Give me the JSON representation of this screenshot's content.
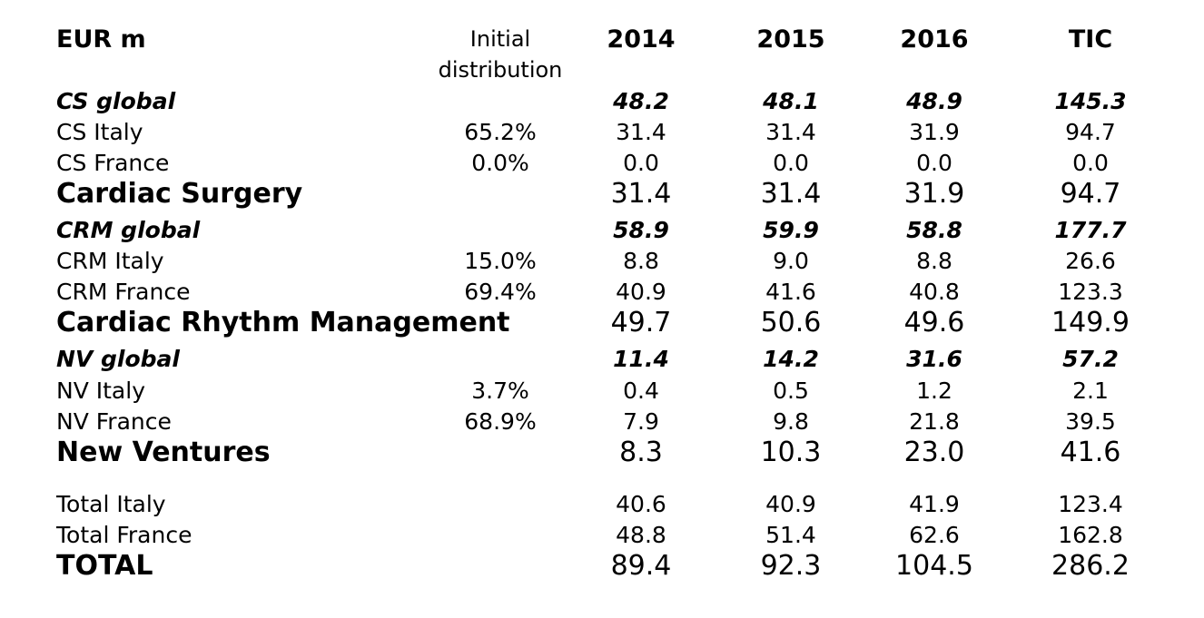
{
  "header": {
    "label": "EUR m",
    "dist": "Initial distribution",
    "y2014": "2014",
    "y2015": "2015",
    "y2016": "2016",
    "tic": "TIC"
  },
  "rows": [
    {
      "type": "global",
      "label": "CS global",
      "dist": "",
      "y2014": "48.2",
      "y2015": "48.1",
      "y2016": "48.9",
      "tic": "145.3"
    },
    {
      "type": "sub",
      "label": "CS Italy",
      "dist": "65.2%",
      "y2014": "31.4",
      "y2015": "31.4",
      "y2016": "31.9",
      "tic": "94.7"
    },
    {
      "type": "sub",
      "label": "CS France",
      "dist": "0.0%",
      "y2014": "0.0",
      "y2015": "0.0",
      "y2016": "0.0",
      "tic": "0.0"
    },
    {
      "type": "total",
      "label": "Cardiac Surgery",
      "dist": "",
      "y2014": "31.4",
      "y2015": "31.4",
      "y2016": "31.9",
      "tic": "94.7"
    },
    {
      "type": "global",
      "label": "CRM global",
      "dist": "",
      "y2014": "58.9",
      "y2015": "59.9",
      "y2016": "58.8",
      "tic": "177.7"
    },
    {
      "type": "sub",
      "label": "CRM Italy",
      "dist": "15.0%",
      "y2014": "8.8",
      "y2015": "9.0",
      "y2016": "8.8",
      "tic": "26.6"
    },
    {
      "type": "sub",
      "label": "CRM France",
      "dist": "69.4%",
      "y2014": "40.9",
      "y2015": "41.6",
      "y2016": "40.8",
      "tic": "123.3"
    },
    {
      "type": "total",
      "label": "Cardiac Rhythm Management",
      "dist": "",
      "y2014": "49.7",
      "y2015": "50.6",
      "y2016": "49.6",
      "tic": "149.9"
    },
    {
      "type": "global",
      "label": "NV global",
      "dist": "",
      "y2014": "11.4",
      "y2015": "14.2",
      "y2016": "31.6",
      "tic": "57.2"
    },
    {
      "type": "sub",
      "label": "NV Italy",
      "dist": "3.7%",
      "y2014": "0.4",
      "y2015": "0.5",
      "y2016": "1.2",
      "tic": "2.1"
    },
    {
      "type": "sub",
      "label": "NV France",
      "dist": "68.9%",
      "y2014": "7.9",
      "y2015": "9.8",
      "y2016": "21.8",
      "tic": "39.5"
    },
    {
      "type": "total",
      "label": "New Ventures",
      "dist": "",
      "y2014": "8.3",
      "y2015": "10.3",
      "y2016": "23.0",
      "tic": "41.6"
    },
    {
      "type": "sub",
      "label": "Total Italy",
      "dist": "",
      "y2014": "40.6",
      "y2015": "40.9",
      "y2016": "41.9",
      "tic": "123.4"
    },
    {
      "type": "sub",
      "label": "Total France",
      "dist": "",
      "y2014": "48.8",
      "y2015": "51.4",
      "y2016": "62.6",
      "tic": "162.8"
    },
    {
      "type": "total",
      "label": "TOTAL",
      "dist": "",
      "y2014": "89.4",
      "y2015": "92.3",
      "y2016": "104.5",
      "tic": "286.2"
    }
  ]
}
